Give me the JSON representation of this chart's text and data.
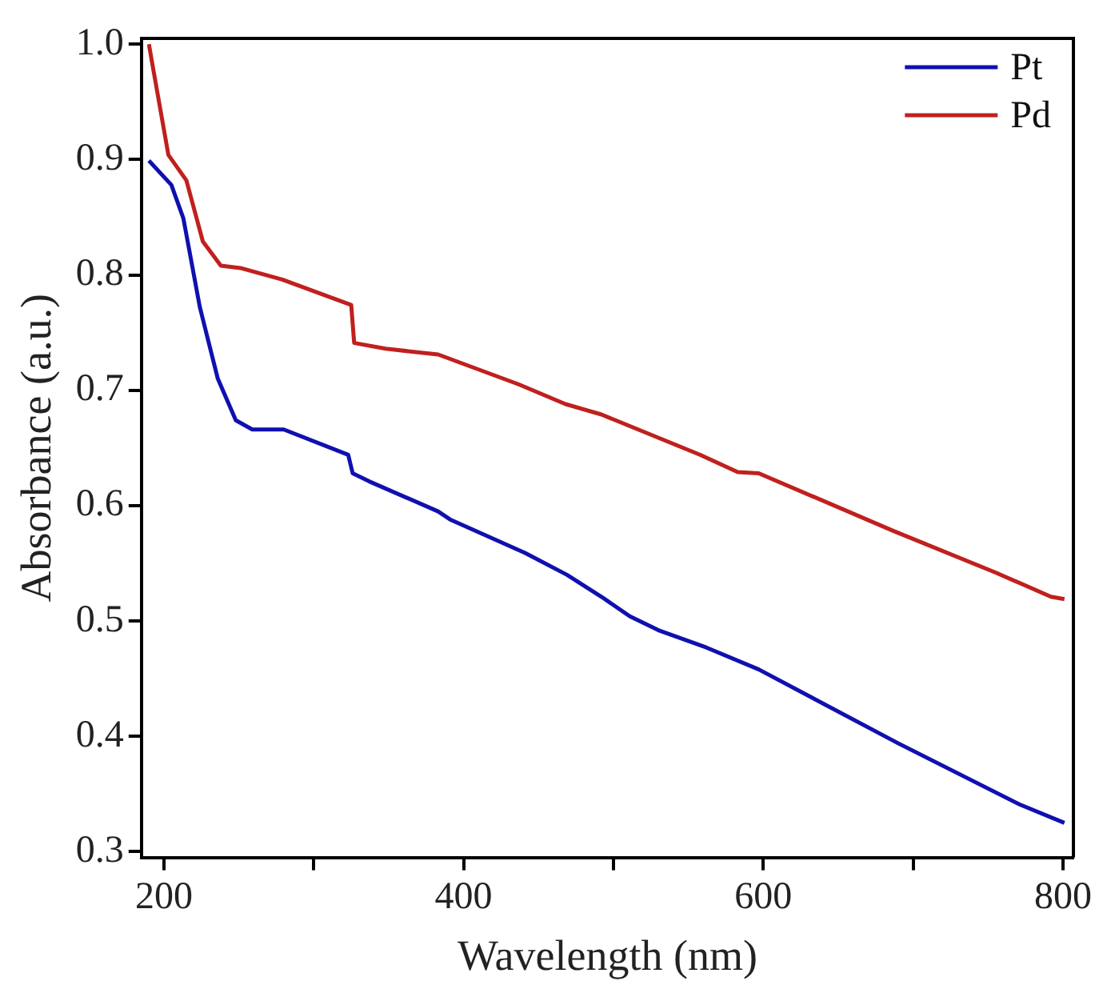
{
  "chart_data": {
    "type": "line",
    "xlabel": "Wavelength (nm)",
    "ylabel": "Absorbance (a.u.)",
    "xlim": [
      185,
      807
    ],
    "ylim": [
      0.295,
      1.005
    ],
    "xticks": [
      200,
      {
        "value": 300,
        "label": null
      },
      400,
      {
        "value": 500,
        "label": null
      },
      600,
      {
        "value": 700,
        "label": null
      },
      800
    ],
    "yticks": [
      0.3,
      0.4,
      0.5,
      0.6,
      0.7,
      0.8,
      0.9,
      {
        "value": 1,
        "label": "1.0"
      }
    ],
    "grid": false,
    "legend": "top right",
    "marker": "none",
    "line_style": "solid",
    "series": [
      {
        "name": "Pt",
        "color": "#1010b0",
        "x": [
          190,
          205,
          213,
          224,
          236,
          248,
          259,
          280,
          323,
          326,
          337,
          383,
          391,
          441,
          469,
          492,
          511,
          530,
          562,
          597,
          690,
          771,
          801
        ],
        "values": [
          0.899,
          0.878,
          0.849,
          0.772,
          0.71,
          0.674,
          0.666,
          0.666,
          0.644,
          0.628,
          0.621,
          0.595,
          0.588,
          0.559,
          0.54,
          0.521,
          0.504,
          0.492,
          0.477,
          0.458,
          0.394,
          0.341,
          0.325
        ]
      },
      {
        "name": "Pd",
        "color": "#c0201e",
        "x": [
          190,
          192,
          203,
          215,
          226,
          238,
          251,
          279,
          325,
          327,
          348,
          383,
          437,
          468,
          492,
          558,
          583,
          597,
          687,
          755,
          792,
          801
        ],
        "values": [
          1.0,
          0.985,
          0.904,
          0.882,
          0.829,
          0.808,
          0.806,
          0.796,
          0.774,
          0.741,
          0.736,
          0.731,
          0.705,
          0.688,
          0.679,
          0.644,
          0.629,
          0.628,
          0.578,
          0.542,
          0.521,
          0.519
        ]
      }
    ]
  }
}
